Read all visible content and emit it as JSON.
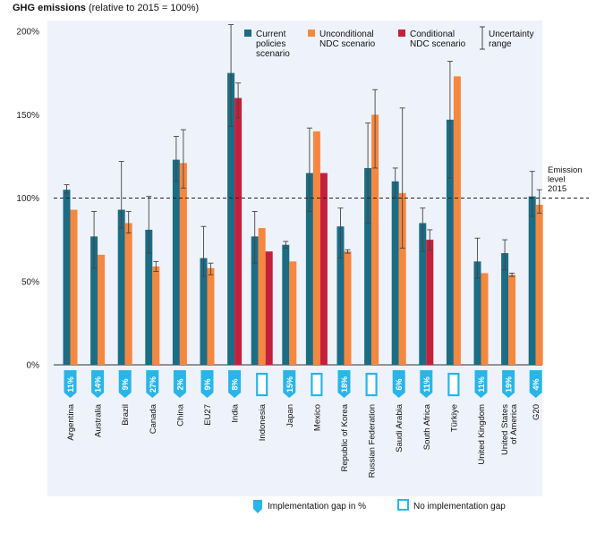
{
  "chart_data": {
    "type": "bar",
    "title": "GHG emissions",
    "subtitle": "(relative to 2015 = 100%)",
    "ylim": [
      0,
      200
    ],
    "yticks": [
      "0%",
      "50%",
      "100%",
      "150%",
      "200%"
    ],
    "reference_line": {
      "value": 100,
      "label_lines": [
        "Emission",
        "level",
        "2015"
      ]
    },
    "grid": false,
    "legend_position": "top-right",
    "categories": [
      "Argentina",
      "Australia",
      "Brazil",
      "Canada",
      "China",
      "EU27",
      "India",
      "Indonesia",
      "Japan",
      "Mexico",
      "Republic of Korea",
      "Russian Federation",
      "Saudi Arabia",
      "South Africa",
      "Türkiye",
      "United Kingdom",
      "United States of America",
      "G20"
    ],
    "series": [
      {
        "name": "Current policies scenario",
        "legend_lines": [
          "Current",
          "policies",
          "scenario"
        ],
        "color": "#1c6c84",
        "values": [
          105,
          77,
          93,
          81,
          123,
          64,
          175,
          77,
          72,
          115,
          83,
          118,
          110,
          85,
          147,
          62,
          67,
          101
        ],
        "error_low": [
          103,
          58,
          82,
          67,
          110,
          53,
          143,
          61,
          70,
          92,
          64,
          85,
          100,
          68,
          112,
          52,
          57,
          89
        ],
        "error_high": [
          108,
          92,
          122,
          101,
          137,
          83,
          204,
          92,
          74,
          142,
          94,
          145,
          118,
          94,
          182,
          76,
          75,
          116
        ]
      },
      {
        "name": "Unconditional NDC scenario",
        "legend_lines": [
          "Unconditional",
          "NDC scenario"
        ],
        "color": "#f6873f",
        "values": [
          93,
          66,
          85,
          59,
          121,
          58,
          null,
          82,
          62,
          140,
          68,
          150,
          103,
          null,
          173,
          55,
          54,
          96
        ],
        "error_low": [
          null,
          null,
          79,
          56,
          106,
          54,
          null,
          null,
          null,
          null,
          67,
          118,
          70,
          null,
          null,
          null,
          53,
          91
        ],
        "error_high": [
          null,
          null,
          92,
          62,
          141,
          61,
          null,
          null,
          null,
          null,
          69,
          165,
          154,
          null,
          null,
          null,
          55,
          105
        ]
      },
      {
        "name": "Conditional NDC scenario",
        "legend_lines": [
          "Conditional",
          "NDC scenario"
        ],
        "color": "#c4203c",
        "values": [
          null,
          null,
          null,
          null,
          null,
          null,
          160,
          68,
          null,
          115,
          null,
          null,
          null,
          75,
          null,
          null,
          null,
          null
        ],
        "error_low": [
          null,
          null,
          null,
          null,
          null,
          null,
          148,
          null,
          null,
          null,
          null,
          null,
          null,
          69,
          null,
          null,
          null,
          null
        ],
        "error_high": [
          null,
          null,
          null,
          null,
          null,
          null,
          169,
          null,
          null,
          null,
          null,
          null,
          null,
          81,
          null,
          null,
          null,
          null
        ]
      }
    ],
    "uncertainty_legend": [
      "Uncertainty",
      "range"
    ],
    "implementation_gap": [
      "11%",
      "14%",
      "9%",
      "27%",
      "2%",
      "9%",
      "8%",
      "",
      "15%",
      "",
      "18%",
      "",
      "6%",
      "11%",
      "",
      "11%",
      "19%",
      "4%"
    ],
    "bottom_legend": {
      "gap": "Implementation gap in %",
      "no_gap": "No implementation gap"
    },
    "marker_color": "#29b5e8"
  }
}
